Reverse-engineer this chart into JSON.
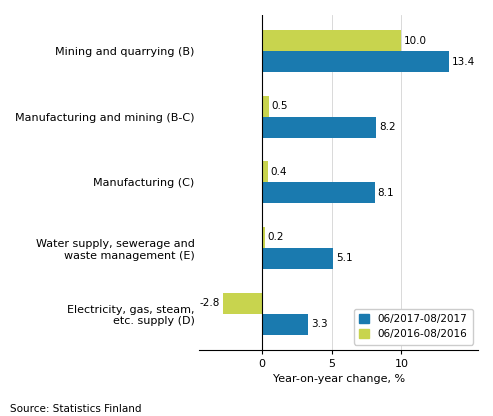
{
  "categories": [
    "Mining and quarrying (B)",
    "Manufacturing and mining (B-C)",
    "Manufacturing (C)",
    "Water supply, sewerage and\nwaste management (E)",
    "Electricity, gas, steam,\netc. supply (D)"
  ],
  "series_2017": [
    13.4,
    8.2,
    8.1,
    5.1,
    3.3
  ],
  "series_2016": [
    10.0,
    0.5,
    0.4,
    0.2,
    -2.8
  ],
  "color_2017": "#1a7aaf",
  "color_2016": "#c8d44e",
  "legend_2017": "06/2017-08/2017",
  "legend_2016": "06/2016-08/2016",
  "xlabel": "Year-on-year change, %",
  "source": "Source: Statistics Finland",
  "xlim": [
    -4.5,
    15.5
  ],
  "xticks": [
    0,
    5,
    10
  ],
  "bar_height": 0.32,
  "tick_fontsize": 8,
  "label_fontsize": 8,
  "value_fontsize": 7.5,
  "source_fontsize": 7.5,
  "legend_fontsize": 7.5
}
